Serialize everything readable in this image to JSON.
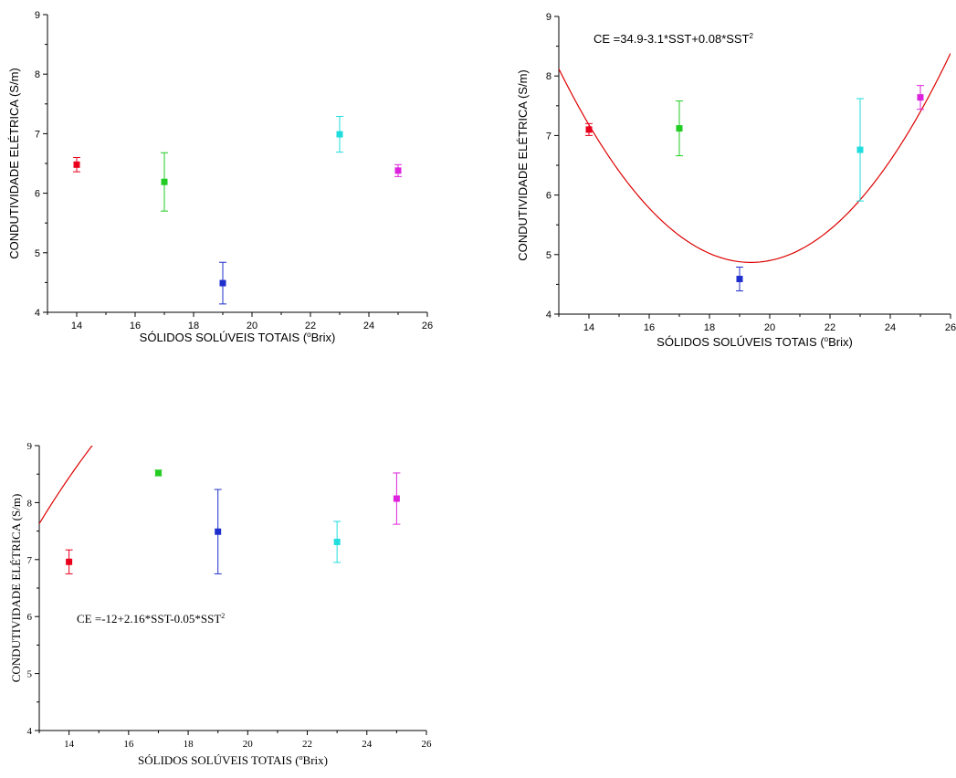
{
  "chart_data": [
    {
      "type": "scatter",
      "title": "",
      "xlabel": "SÓLIDOS SOLÚVEIS TOTAIS (",
      "xlabel_sup": "o",
      "xlabel_tail": "Brix)",
      "ylabel": "CONDUTIVIDADE ELÉTRICA (S/m)",
      "xlim": [
        13,
        26
      ],
      "ylim": [
        4,
        9
      ],
      "xticks": [
        "14",
        "16",
        "18",
        "20",
        "22",
        "24",
        "26"
      ],
      "yticks": [
        "4",
        "5",
        "6",
        "7",
        "8",
        "9"
      ],
      "points": [
        {
          "x": 14,
          "y": 6.48,
          "err": 0.12,
          "color": "#e8001c"
        },
        {
          "x": 17,
          "y": 6.19,
          "err": 0.49,
          "color": "#22cc22"
        },
        {
          "x": 19,
          "y": 4.49,
          "err": 0.35,
          "color": "#1f2fcc"
        },
        {
          "x": 23,
          "y": 6.99,
          "err": 0.3,
          "color": "#22dddd"
        },
        {
          "x": 25,
          "y": 6.38,
          "err": 0.1,
          "color": "#dd22dd"
        }
      ],
      "fit": null,
      "equation": null
    },
    {
      "type": "scatter",
      "title": "",
      "xlabel": "SÓLIDOS SOLÚVEIS TOTAIS (",
      "xlabel_sup": "o",
      "xlabel_tail": "Brix)",
      "ylabel": "CONDUTIVIDADE ELÉTRICA (S/m)",
      "xlim": [
        13,
        26
      ],
      "ylim": [
        4,
        9
      ],
      "xticks": [
        "14",
        "16",
        "18",
        "20",
        "22",
        "24",
        "26"
      ],
      "yticks": [
        "4",
        "5",
        "6",
        "7",
        "8",
        "9"
      ],
      "points": [
        {
          "x": 14,
          "y": 7.1,
          "err": 0.1,
          "color": "#e8001c"
        },
        {
          "x": 17,
          "y": 7.12,
          "err": 0.46,
          "color": "#22cc22"
        },
        {
          "x": 19,
          "y": 4.59,
          "err": 0.2,
          "color": "#1f2fcc"
        },
        {
          "x": 23,
          "y": 6.76,
          "err": 0.86,
          "color": "#22dddd"
        },
        {
          "x": 25,
          "y": 7.64,
          "err": 0.2,
          "color": "#dd22dd"
        }
      ],
      "fit": {
        "coeffs": [
          34.9,
          -3.1,
          0.08
        ],
        "color": "#dd0000"
      },
      "equation": {
        "text": "CE =34.9-3.1*SST+0.08*SST",
        "sup": "2"
      }
    },
    {
      "type": "scatter",
      "title": "",
      "xlabel": "SÓLIDOS SOLÚVEIS TOTAIS (",
      "xlabel_sup": "o",
      "xlabel_tail": "Brix)",
      "ylabel": "CONDUTIVIDADE ELÉTRICA (S/m)",
      "xlim": [
        13,
        26
      ],
      "ylim": [
        4,
        9
      ],
      "xticks": [
        "14",
        "16",
        "18",
        "20",
        "22",
        "24",
        "26"
      ],
      "yticks": [
        "4",
        "5",
        "6",
        "7",
        "8",
        "9"
      ],
      "points": [
        {
          "x": 14,
          "y": 6.96,
          "err": 0.21,
          "color": "#e8001c"
        },
        {
          "x": 17,
          "y": 8.52,
          "err": 0.05,
          "color": "#22cc22"
        },
        {
          "x": 19,
          "y": 7.49,
          "err": 0.74,
          "color": "#1f2fcc"
        },
        {
          "x": 23,
          "y": 7.31,
          "err": 0.36,
          "color": "#22dddd"
        },
        {
          "x": 25,
          "y": 8.07,
          "err": 0.45,
          "color": "#dd22dd"
        }
      ],
      "fit": {
        "coeffs": [
          -12,
          2.16,
          -0.05
        ],
        "color": "#dd0000"
      },
      "equation": {
        "text": "CE =-12+2.16*SST-0.05*SST",
        "sup": "2"
      }
    }
  ]
}
